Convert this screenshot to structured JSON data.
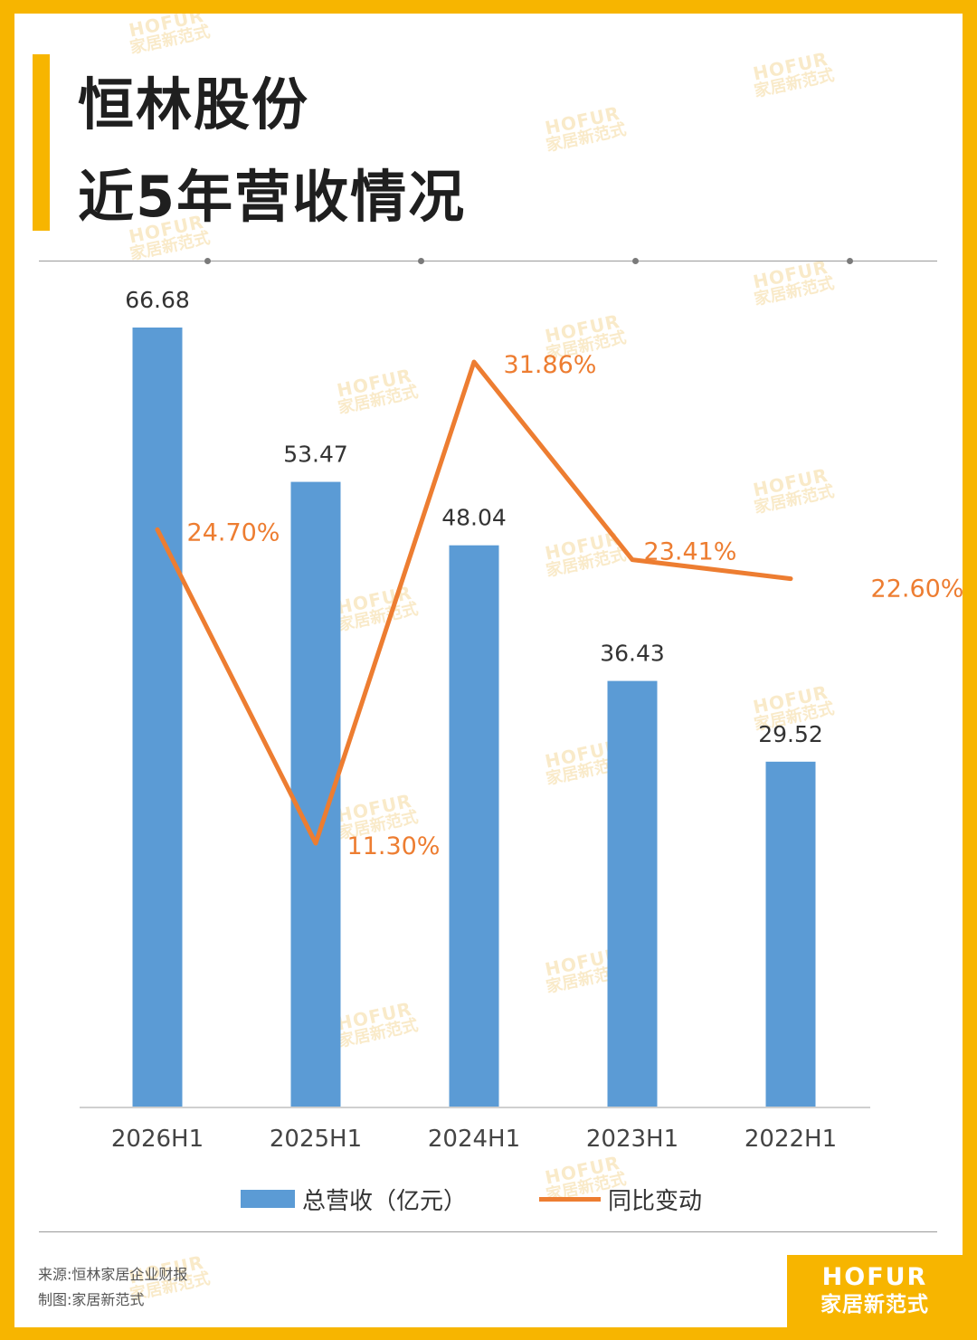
{
  "title": {
    "line1": "恒林股份",
    "line2": "近5年营收情况"
  },
  "colors": {
    "accent": "#F7B500",
    "bar": "#5B9BD5",
    "line": "#ED7D31"
  },
  "chart_data": {
    "type": "bar",
    "categories": [
      "2026H1",
      "2025H1",
      "2024H1",
      "2023H1",
      "2022H1"
    ],
    "series": [
      {
        "name": "总营收（亿元）",
        "type": "bar",
        "values": [
          66.68,
          53.47,
          48.04,
          36.43,
          29.52
        ],
        "labels": [
          "66.68",
          "53.47",
          "48.04",
          "36.43",
          "29.52"
        ]
      },
      {
        "name": "同比变动",
        "type": "line",
        "values": [
          24.7,
          11.3,
          31.86,
          23.41,
          22.6
        ],
        "labels": [
          "24.70%",
          "11.30%",
          "31.86%",
          "23.41%",
          "22.60%"
        ]
      }
    ],
    "grid": false,
    "legend_position": "bottom"
  },
  "legend": {
    "bar_label": "总营收（亿元）",
    "line_label": "同比变动"
  },
  "source": {
    "line1": "来源:恒林家居企业财报",
    "line2": "制图:家居新范式"
  },
  "brand": {
    "en": "HOFUR",
    "cn": "家居新范式"
  },
  "watermark": {
    "en": "HOFUR",
    "cn": "家居新范式"
  }
}
